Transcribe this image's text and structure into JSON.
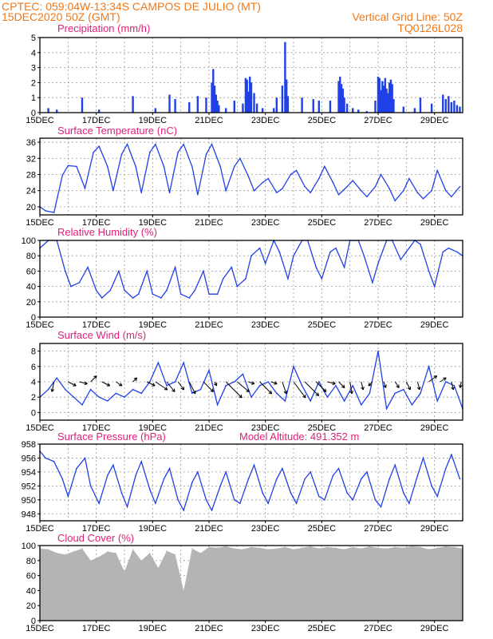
{
  "header": {
    "line1": "CPTEC:   059:04W-13:34S   CAMPOS DE JULIO (MT)",
    "line2": "15DEC2020 50Z (GMT)",
    "grid_note": "Vertical Grid Line: 50Z",
    "code": "TQ0126L028"
  },
  "colors": {
    "header": "#f07818",
    "panel_title": "#e0207a",
    "series": "#2040e8",
    "cloud": "#b4b4b4",
    "grid": "#9a9a9a"
  },
  "chart_data": [
    {
      "type": "bar",
      "title": "Precipitation (mm/h)",
      "x_ticks": [
        "15DEC",
        "17DEC",
        "19DEC",
        "21DEC",
        "23DEC",
        "25DEC",
        "27DEC",
        "29DEC"
      ],
      "y_ticks": [
        "0",
        "1",
        "2",
        "3",
        "4",
        "5"
      ],
      "ylim": [
        0,
        5
      ],
      "x_days": [
        15,
        30
      ],
      "x": [
        15.3,
        15.6,
        16.5,
        17.1,
        18.3,
        19.1,
        19.6,
        19.8,
        20.3,
        20.6,
        20.9,
        21.1,
        21.15,
        21.2,
        21.25,
        21.3,
        21.35,
        21.6,
        21.9,
        22.2,
        22.3,
        22.35,
        22.4,
        22.45,
        22.5,
        22.6,
        22.7,
        22.9,
        23.3,
        23.4,
        23.6,
        23.7,
        23.75,
        23.8,
        24.3,
        24.7,
        24.9,
        25.3,
        25.6,
        25.65,
        25.7,
        25.75,
        25.8,
        25.9,
        26.1,
        26.3,
        26.6,
        26.9,
        27.0,
        27.05,
        27.1,
        27.15,
        27.2,
        27.25,
        27.3,
        27.35,
        27.4,
        27.45,
        27.5,
        27.55,
        27.9,
        28.3,
        28.5,
        28.9,
        29.3,
        29.4,
        29.5,
        29.6,
        29.7,
        29.8,
        29.9
      ],
      "values": [
        0.3,
        0.2,
        1.0,
        0.2,
        1.1,
        0.3,
        1.2,
        0.9,
        0.7,
        1.1,
        1.0,
        2.0,
        2.9,
        1.8,
        1.2,
        0.8,
        0.5,
        0.3,
        0.8,
        0.6,
        2.3,
        2.2,
        1.4,
        2.4,
        2.0,
        1.3,
        0.6,
        0.3,
        0.3,
        1.0,
        1.8,
        4.7,
        2.2,
        1.1,
        1.0,
        0.9,
        0.8,
        0.8,
        2.1,
        2.4,
        1.9,
        1.6,
        1.0,
        0.6,
        0.3,
        0.2,
        0.1,
        0.8,
        2.4,
        2.3,
        1.5,
        2.1,
        1.8,
        2.3,
        1.6,
        1.3,
        2.0,
        2.2,
        1.9,
        0.9,
        0.4,
        0.3,
        1.0,
        0.6,
        1.2,
        0.9,
        1.1,
        0.7,
        0.8,
        0.5,
        0.4
      ]
    },
    {
      "type": "line",
      "title": "Surface Temperature (nC)",
      "x_ticks": [
        "15DEC",
        "17DEC",
        "19DEC",
        "21DEC",
        "23DEC",
        "25DEC",
        "27DEC",
        "29DEC"
      ],
      "y_ticks": [
        "20",
        "24",
        "28",
        "32",
        "36"
      ],
      "ylim": [
        18,
        37
      ],
      "x_days": [
        15,
        30
      ],
      "x": [
        15.0,
        15.2,
        15.5,
        15.8,
        16.0,
        16.3,
        16.6,
        16.9,
        17.1,
        17.4,
        17.6,
        17.9,
        18.1,
        18.4,
        18.6,
        18.9,
        19.1,
        19.4,
        19.6,
        19.9,
        20.1,
        20.4,
        20.6,
        20.9,
        21.1,
        21.4,
        21.6,
        21.9,
        22.1,
        22.4,
        22.6,
        22.9,
        23.1,
        23.4,
        23.6,
        23.9,
        24.1,
        24.4,
        24.6,
        24.9,
        25.1,
        25.4,
        25.6,
        25.9,
        26.1,
        26.4,
        26.6,
        26.9,
        27.1,
        27.4,
        27.6,
        27.9,
        28.1,
        28.4,
        28.6,
        28.9,
        29.1,
        29.4,
        29.6,
        29.9
      ],
      "values": [
        20.0,
        19.0,
        18.6,
        27.8,
        30.2,
        30.0,
        24.6,
        33.5,
        35.0,
        30.0,
        24.0,
        33.0,
        35.5,
        30.0,
        23.5,
        33.5,
        35.5,
        30.0,
        23.5,
        33.5,
        35.5,
        30.0,
        23.0,
        33.0,
        35.5,
        30.0,
        24.0,
        30.0,
        32.0,
        27.5,
        24.0,
        26.0,
        27.0,
        23.5,
        24.5,
        28.0,
        29.0,
        25.0,
        23.5,
        27.0,
        30.0,
        26.0,
        23.0,
        25.0,
        26.5,
        24.0,
        22.5,
        25.0,
        28.0,
        24.5,
        21.5,
        24.0,
        27.0,
        23.5,
        22.0,
        24.0,
        29.0,
        24.0,
        22.5,
        25.0
      ]
    },
    {
      "type": "line",
      "title": "Relative Humidity (%)",
      "x_ticks": [
        "15DEC",
        "17DEC",
        "19DEC",
        "21DEC",
        "23DEC",
        "25DEC",
        "27DEC",
        "29DEC"
      ],
      "y_ticks": [
        "0",
        "20",
        "40",
        "60",
        "80",
        "100"
      ],
      "ylim": [
        0,
        100
      ],
      "x_days": [
        15,
        30
      ],
      "x": [
        15.0,
        15.3,
        15.6,
        15.9,
        16.1,
        16.4,
        16.7,
        17.0,
        17.2,
        17.5,
        17.8,
        18.0,
        18.3,
        18.5,
        18.8,
        19.0,
        19.3,
        19.5,
        19.8,
        20.0,
        20.3,
        20.5,
        20.8,
        21.0,
        21.3,
        21.5,
        21.8,
        22.0,
        22.3,
        22.5,
        22.8,
        23.0,
        23.3,
        23.5,
        23.8,
        24.0,
        24.3,
        24.5,
        24.8,
        25.0,
        25.3,
        25.5,
        25.8,
        26.0,
        26.3,
        26.5,
        26.8,
        27.0,
        27.3,
        27.5,
        27.8,
        28.0,
        28.3,
        28.5,
        28.8,
        29.0,
        29.3,
        29.5,
        29.8,
        30.0
      ],
      "values": [
        90,
        100,
        100,
        60,
        40,
        45,
        65,
        35,
        25,
        35,
        60,
        35,
        25,
        30,
        60,
        30,
        25,
        35,
        65,
        30,
        25,
        35,
        60,
        30,
        30,
        50,
        65,
        40,
        50,
        80,
        90,
        70,
        100,
        85,
        50,
        80,
        100,
        100,
        65,
        50,
        85,
        90,
        65,
        100,
        100,
        80,
        45,
        70,
        100,
        100,
        75,
        85,
        100,
        95,
        60,
        40,
        85,
        90,
        85,
        80
      ]
    },
    {
      "type": "line",
      "title": "Surface Wind (m/s)",
      "x_ticks": [
        "15DEC",
        "17DEC",
        "19DEC",
        "21DEC",
        "23DEC",
        "25DEC",
        "27DEC",
        "29DEC"
      ],
      "y_ticks": [
        "0",
        "2",
        "4",
        "6",
        "8"
      ],
      "ylim": [
        -1,
        9
      ],
      "x_days": [
        15,
        30
      ],
      "x": [
        15.0,
        15.3,
        15.6,
        15.9,
        16.2,
        16.5,
        16.8,
        17.1,
        17.4,
        17.7,
        18.0,
        18.3,
        18.6,
        18.9,
        19.2,
        19.5,
        19.8,
        20.1,
        20.4,
        20.7,
        21.0,
        21.3,
        21.6,
        21.9,
        22.2,
        22.5,
        22.8,
        23.1,
        23.4,
        23.7,
        24.0,
        24.3,
        24.6,
        24.9,
        25.2,
        25.5,
        25.8,
        26.1,
        26.4,
        26.7,
        27.0,
        27.3,
        27.6,
        27.9,
        28.2,
        28.5,
        28.8,
        29.1,
        29.4,
        29.7,
        30.0
      ],
      "values": [
        2.0,
        3.0,
        4.5,
        3.0,
        2.0,
        1.0,
        3.0,
        2.0,
        1.5,
        2.5,
        2.0,
        3.0,
        2.5,
        4.0,
        6.5,
        3.5,
        4.0,
        6.5,
        2.5,
        3.0,
        5.5,
        1.0,
        3.5,
        4.0,
        5.0,
        2.0,
        3.5,
        4.0,
        2.5,
        1.5,
        6.0,
        3.5,
        1.5,
        4.0,
        2.0,
        3.5,
        1.5,
        3.5,
        1.0,
        2.5,
        8.0,
        0.5,
        2.5,
        3.0,
        1.0,
        2.5,
        6.0,
        1.5,
        4.0,
        3.5,
        0.5
      ],
      "vectors": [
        {
          "day": 15.5,
          "u": -0.5,
          "v": 2.5
        },
        {
          "day": 16.0,
          "u": 2.0,
          "v": 1.0
        },
        {
          "day": 16.4,
          "u": 2.0,
          "v": 0.5
        },
        {
          "day": 16.8,
          "u": 1.5,
          "v": -1.5
        },
        {
          "day": 17.2,
          "u": 2.0,
          "v": 1.0
        },
        {
          "day": 17.7,
          "u": 1.5,
          "v": 1.0
        },
        {
          "day": 18.3,
          "u": 1.0,
          "v": -1.0
        },
        {
          "day": 18.8,
          "u": 2.0,
          "v": 1.0
        },
        {
          "day": 19.1,
          "u": 3.0,
          "v": 2.0
        },
        {
          "day": 19.5,
          "u": 2.0,
          "v": 2.5
        },
        {
          "day": 19.9,
          "u": 1.5,
          "v": 2.0
        },
        {
          "day": 20.3,
          "u": 1.5,
          "v": 3.0
        },
        {
          "day": 20.8,
          "u": 2.5,
          "v": 2.5
        },
        {
          "day": 21.2,
          "u": 0.5,
          "v": 1.0
        },
        {
          "day": 21.6,
          "u": 4.0,
          "v": 4.0
        },
        {
          "day": 22.0,
          "u": 3.0,
          "v": 2.5
        },
        {
          "day": 22.4,
          "u": 1.5,
          "v": 0.5
        },
        {
          "day": 22.8,
          "u": 3.0,
          "v": 3.0
        },
        {
          "day": 23.2,
          "u": 1.5,
          "v": 0.5
        },
        {
          "day": 23.6,
          "u": 1.0,
          "v": 3.0
        },
        {
          "day": 24.0,
          "u": 3.0,
          "v": 4.0
        },
        {
          "day": 24.4,
          "u": 3.5,
          "v": 3.5
        },
        {
          "day": 24.8,
          "u": 2.5,
          "v": 2.5
        },
        {
          "day": 25.2,
          "u": 2.0,
          "v": 0.5
        },
        {
          "day": 25.6,
          "u": 1.5,
          "v": 1.5
        },
        {
          "day": 26.0,
          "u": 0.5,
          "v": 3.0
        },
        {
          "day": 26.4,
          "u": 0.5,
          "v": 2.0
        },
        {
          "day": 26.8,
          "u": -1.0,
          "v": 1.0
        },
        {
          "day": 27.2,
          "u": 0.5,
          "v": 1.5
        },
        {
          "day": 27.6,
          "u": 1.0,
          "v": 1.5
        },
        {
          "day": 28.0,
          "u": 1.0,
          "v": 2.0
        },
        {
          "day": 28.4,
          "u": 0.5,
          "v": 2.0
        },
        {
          "day": 28.8,
          "u": 2.0,
          "v": -1.5
        },
        {
          "day": 29.2,
          "u": 1.5,
          "v": -1.0
        },
        {
          "day": 29.6,
          "u": 0.5,
          "v": 2.0
        },
        {
          "day": 29.95,
          "u": -0.3,
          "v": 1.5
        }
      ]
    },
    {
      "type": "line",
      "title": "Surface Pressure (hPa)",
      "annotation": "Model Altitude: 491.352 m",
      "x_ticks": [
        "15DEC",
        "17DEC",
        "19DEC",
        "21DEC",
        "23DEC",
        "25DEC",
        "27DEC",
        "29DEC"
      ],
      "y_ticks": [
        "948",
        "950",
        "952",
        "954",
        "956",
        "958"
      ],
      "ylim": [
        947,
        958
      ],
      "x_days": [
        15,
        30
      ],
      "x": [
        15.0,
        15.2,
        15.5,
        15.8,
        16.0,
        16.3,
        16.6,
        16.8,
        17.1,
        17.4,
        17.6,
        17.9,
        18.1,
        18.4,
        18.6,
        18.9,
        19.1,
        19.4,
        19.6,
        19.9,
        20.1,
        20.4,
        20.6,
        20.9,
        21.1,
        21.4,
        21.6,
        21.9,
        22.1,
        22.4,
        22.6,
        22.9,
        23.1,
        23.4,
        23.6,
        23.9,
        24.1,
        24.4,
        24.6,
        24.9,
        25.1,
        25.4,
        25.6,
        25.9,
        26.1,
        26.4,
        26.6,
        26.9,
        27.1,
        27.4,
        27.6,
        27.9,
        28.1,
        28.4,
        28.6,
        28.9,
        29.1,
        29.4,
        29.6,
        29.9
      ],
      "values": [
        957.0,
        956.0,
        955.5,
        953.0,
        950.5,
        954.5,
        956.0,
        952.0,
        949.5,
        953.5,
        955.0,
        951.0,
        949.0,
        953.5,
        955.5,
        951.5,
        949.5,
        953.0,
        954.5,
        950.0,
        948.5,
        952.5,
        954.0,
        950.0,
        948.5,
        952.0,
        954.0,
        950.0,
        949.5,
        953.0,
        955.0,
        951.0,
        949.5,
        953.0,
        954.5,
        951.0,
        949.5,
        953.0,
        954.0,
        950.5,
        950.0,
        953.5,
        954.5,
        951.0,
        950.0,
        953.0,
        954.0,
        950.0,
        949.0,
        953.0,
        955.0,
        951.0,
        949.5,
        953.5,
        956.0,
        952.0,
        950.5,
        954.5,
        956.5,
        953.0
      ]
    },
    {
      "type": "area",
      "title": "Cloud Cover (%)",
      "x_ticks": [
        "15DEC",
        "17DEC",
        "19DEC",
        "21DEC",
        "23DEC",
        "25DEC",
        "27DEC",
        "29DEC"
      ],
      "y_ticks": [
        "0",
        "20",
        "40",
        "60",
        "80",
        "100"
      ],
      "ylim": [
        0,
        100
      ],
      "x_days": [
        15,
        30
      ],
      "x": [
        15.0,
        15.3,
        15.6,
        15.9,
        16.2,
        16.5,
        16.8,
        17.1,
        17.4,
        17.7,
        18.0,
        18.3,
        18.6,
        18.9,
        19.2,
        19.5,
        19.8,
        20.1,
        20.4,
        20.7,
        21.0,
        21.3,
        21.6,
        21.9,
        22.2,
        22.5,
        22.8,
        23.1,
        23.4,
        23.7,
        24.0,
        24.3,
        24.6,
        24.9,
        25.2,
        25.5,
        25.8,
        26.1,
        26.4,
        26.7,
        27.0,
        27.3,
        27.6,
        27.9,
        28.2,
        28.5,
        28.8,
        29.1,
        29.4,
        29.7,
        30.0
      ],
      "values": [
        96,
        95,
        90,
        88,
        92,
        96,
        80,
        85,
        92,
        90,
        65,
        95,
        80,
        90,
        70,
        93,
        88,
        40,
        96,
        90,
        98,
        97,
        99,
        96,
        95,
        98,
        97,
        95,
        96,
        98,
        95,
        97,
        99,
        96,
        98,
        97,
        95,
        98,
        96,
        99,
        97,
        96,
        98,
        97,
        99,
        98,
        95,
        97,
        99,
        98,
        96
      ]
    }
  ]
}
